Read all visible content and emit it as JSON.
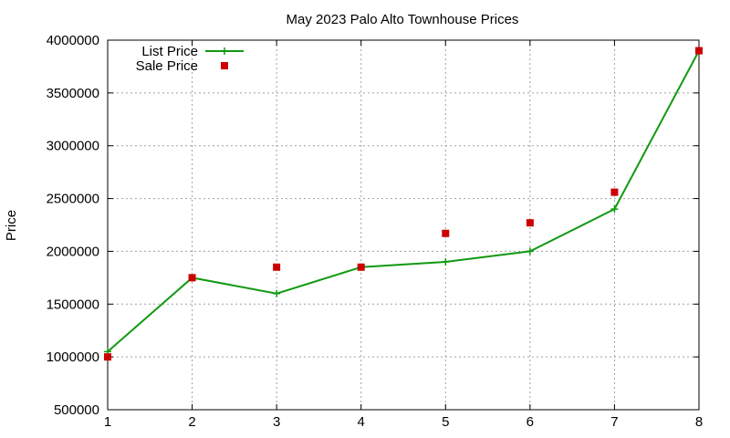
{
  "chart_data": {
    "type": "line",
    "title": "May 2023 Palo Alto Townhouse Prices",
    "xlabel": "",
    "ylabel": "Price",
    "x": [
      1,
      2,
      3,
      4,
      5,
      6,
      7,
      8
    ],
    "xlim": [
      1,
      8
    ],
    "ylim": [
      500000,
      4000000
    ],
    "xticks": [
      "1",
      "2",
      "3",
      "4",
      "5",
      "6",
      "7",
      "8"
    ],
    "yticks": [
      "500000",
      "1000000",
      "1500000",
      "2000000",
      "2500000",
      "3000000",
      "3500000",
      "4000000"
    ],
    "grid": true,
    "legend_position": "top-left",
    "series": [
      {
        "name": "List Price",
        "style": "linespoints",
        "marker": "plus",
        "color": "#119911",
        "values": [
          1050000,
          1750000,
          1600000,
          1850000,
          1900000,
          2000000,
          2400000,
          3900000
        ]
      },
      {
        "name": "Sale Price",
        "style": "points",
        "marker": "square",
        "color": "#cc0000",
        "values": [
          1000000,
          1750000,
          1850000,
          1850000,
          2170000,
          2270000,
          2560000,
          3900000
        ]
      }
    ]
  }
}
